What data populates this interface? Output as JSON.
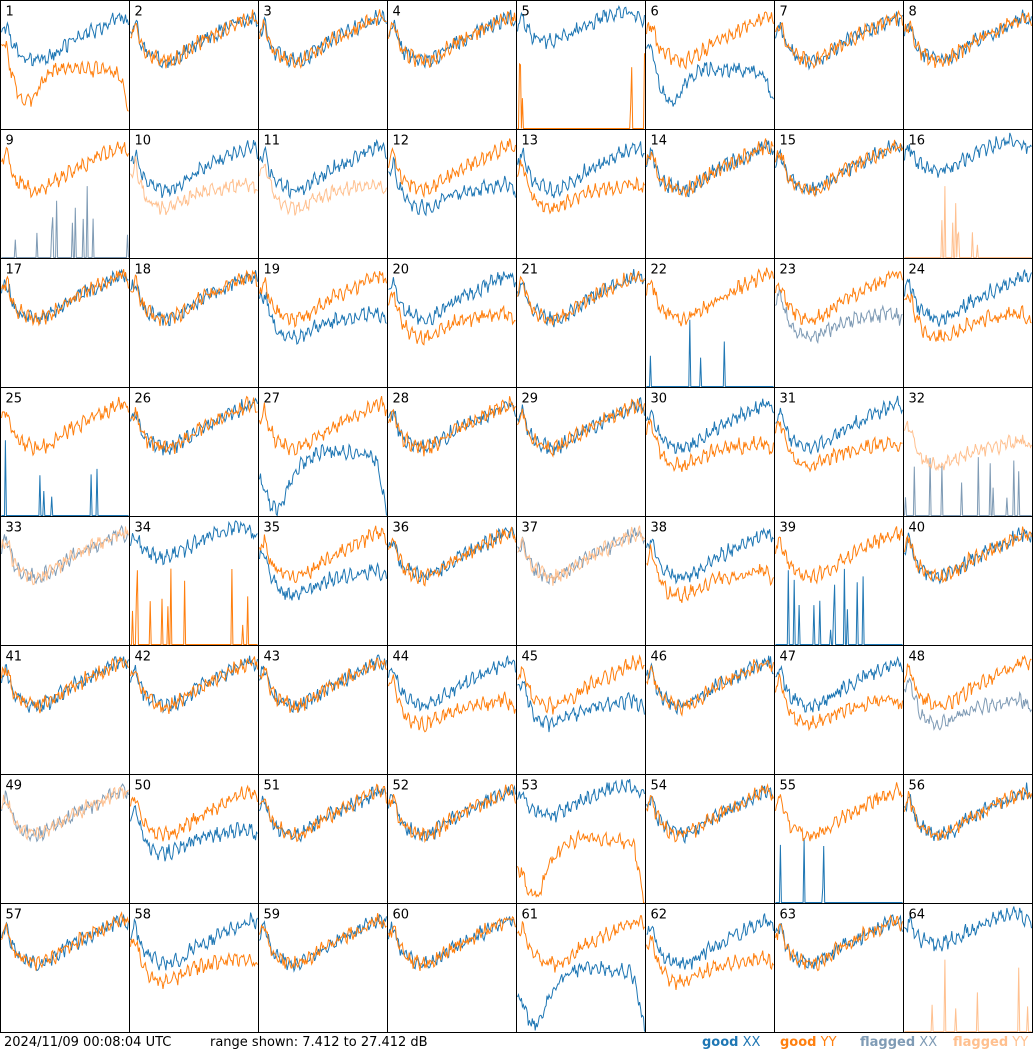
{
  "footer": {
    "timestamp": "2024/11/09 00:08:04 UTC",
    "range_text": "range shown: 7.412 to 27.412 dB"
  },
  "legend": [
    {
      "label": "good",
      "pol": "XX",
      "color": "#1f77b4"
    },
    {
      "label": "good",
      "pol": "YY",
      "color": "#ff7f0e"
    },
    {
      "label": "flagged",
      "pol": "XX",
      "color": "#7f9bb5"
    },
    {
      "label": "flagged",
      "pol": "YY",
      "color": "#ffc08f"
    }
  ],
  "chart_data": {
    "type": "line",
    "title": "",
    "xlabel": "",
    "ylabel": "",
    "ylim": [
      7.412,
      27.412
    ],
    "unit": "dB",
    "grid": false,
    "legend_position": "bottom-right",
    "layout": {
      "rows": 8,
      "cols": 8
    },
    "panel_labels": [
      "1",
      "2",
      "3",
      "4",
      "5",
      "6",
      "7",
      "8",
      "9",
      "10",
      "11",
      "12",
      "13",
      "14",
      "15",
      "16",
      "17",
      "18",
      "19",
      "20",
      "21",
      "22",
      "23",
      "24",
      "25",
      "26",
      "27",
      "28",
      "29",
      "30",
      "31",
      "32",
      "33",
      "34",
      "35",
      "36",
      "37",
      "38",
      "39",
      "40",
      "41",
      "42",
      "43",
      "44",
      "45",
      "46",
      "47",
      "48",
      "49",
      "50",
      "51",
      "52",
      "53",
      "54",
      "55",
      "56",
      "57",
      "58",
      "59",
      "60",
      "61",
      "62",
      "63",
      "64"
    ],
    "series_styles": {
      "good_xx": "#1f77b4",
      "good_yy": "#ff7f0e",
      "flagged_xx": "#7f9bb5",
      "flagged_yy": "#ffc08f"
    },
    "profiles": {
      "normal": [
        22.5,
        24.0,
        21.0,
        19.5,
        19.0,
        18.5,
        18.2,
        18.0,
        18.2,
        18.6,
        19.0,
        19.6,
        20.2,
        20.8,
        21.2,
        21.6,
        22.0,
        22.4,
        22.8,
        23.2,
        23.6,
        24.0,
        24.4,
        24.8,
        25.0,
        24.2
      ],
      "raised": [
        23.5,
        25.0,
        22.8,
        22.0,
        21.6,
        21.4,
        21.2,
        21.2,
        21.4,
        21.8,
        22.2,
        22.6,
        23.0,
        23.4,
        23.8,
        24.2,
        24.6,
        25.0,
        25.2,
        25.4,
        25.6,
        25.8,
        26.0,
        25.6,
        25.0,
        24.6
      ],
      "deep_dip": [
        21.0,
        20.0,
        16.0,
        13.5,
        12.0,
        11.5,
        12.2,
        13.5,
        14.8,
        15.8,
        16.5,
        16.8,
        17.0,
        17.0,
        17.0,
        16.9,
        16.8,
        16.8,
        16.8,
        16.7,
        16.6,
        16.5,
        16.3,
        16.0,
        14.0,
        11.0
      ],
      "arch": [
        13.0,
        12.0,
        9.5,
        8.5,
        8.6,
        10.5,
        12.5,
        14.0,
        15.2,
        16.0,
        16.6,
        17.0,
        17.3,
        17.5,
        17.5,
        17.4,
        17.4,
        17.3,
        17.3,
        17.2,
        17.1,
        17.0,
        16.8,
        16.0,
        12.0,
        7.8
      ],
      "low": [
        21.0,
        22.0,
        19.0,
        17.0,
        16.0,
        15.5,
        15.3,
        15.2,
        15.4,
        15.8,
        16.2,
        16.6,
        17.0,
        17.4,
        17.6,
        17.8,
        18.0,
        18.2,
        18.3,
        18.4,
        18.6,
        18.8,
        19.0,
        19.0,
        18.4,
        17.8
      ],
      "spikes": [
        7.412,
        7.412,
        7.412,
        10.5,
        7.412,
        7.412,
        7.412,
        7.412,
        12.0,
        7.412,
        7.412,
        7.412,
        7.412,
        7.412,
        7.412,
        9.0,
        7.412,
        7.412,
        7.412,
        11.0,
        7.412,
        7.412,
        7.412,
        7.412,
        10.0,
        7.412
      ]
    },
    "panels": [
      {
        "id": "1",
        "xx": "normal",
        "yy": "deep_dip"
      },
      {
        "id": "2",
        "xx": "normal",
        "yy": "normal"
      },
      {
        "id": "3",
        "xx": "normal",
        "yy": "normal"
      },
      {
        "id": "4",
        "xx": "normal",
        "yy": "normal"
      },
      {
        "id": "5",
        "xx": "raised",
        "yy": "spikes"
      },
      {
        "id": "6",
        "xx": "deep_dip",
        "yy": "normal"
      },
      {
        "id": "7",
        "xx": "normal",
        "yy": "normal"
      },
      {
        "id": "8",
        "xx": "normal",
        "yy": "normal"
      },
      {
        "id": "9",
        "xx": "spikes",
        "yy": "normal",
        "flag_xx": true
      },
      {
        "id": "10",
        "xx": "normal",
        "yy": "low",
        "flag_yy": true
      },
      {
        "id": "11",
        "xx": "normal",
        "yy": "low",
        "flag_yy": true
      },
      {
        "id": "12",
        "xx": "low",
        "yy": "normal"
      },
      {
        "id": "13",
        "xx": "normal",
        "yy": "low"
      },
      {
        "id": "14",
        "xx": "normal",
        "yy": "normal"
      },
      {
        "id": "15",
        "xx": "normal",
        "yy": "normal"
      },
      {
        "id": "16",
        "xx": "raised",
        "yy": "spikes",
        "flag_yy": true
      },
      {
        "id": "17",
        "xx": "normal",
        "yy": "normal"
      },
      {
        "id": "18",
        "xx": "normal",
        "yy": "normal"
      },
      {
        "id": "19",
        "xx": "low",
        "yy": "normal"
      },
      {
        "id": "20",
        "xx": "normal",
        "yy": "low"
      },
      {
        "id": "21",
        "xx": "normal",
        "yy": "normal"
      },
      {
        "id": "22",
        "xx": "spikes",
        "yy": "normal"
      },
      {
        "id": "23",
        "xx": "low",
        "yy": "normal",
        "flag_xx": true
      },
      {
        "id": "24",
        "xx": "normal",
        "yy": "low"
      },
      {
        "id": "25",
        "xx": "spikes",
        "yy": "normal"
      },
      {
        "id": "26",
        "xx": "normal",
        "yy": "normal"
      },
      {
        "id": "27",
        "xx": "arch",
        "yy": "normal"
      },
      {
        "id": "28",
        "xx": "normal",
        "yy": "normal"
      },
      {
        "id": "29",
        "xx": "normal",
        "yy": "normal"
      },
      {
        "id": "30",
        "xx": "normal",
        "yy": "low"
      },
      {
        "id": "31",
        "xx": "normal",
        "yy": "low"
      },
      {
        "id": "32",
        "xx": "spikes",
        "yy": "low",
        "flag_xx": true,
        "flag_yy": true
      },
      {
        "id": "33",
        "xx": "normal",
        "yy": "normal",
        "flag_xx": true,
        "flag_yy": true
      },
      {
        "id": "34",
        "xx": "raised",
        "yy": "spikes"
      },
      {
        "id": "35",
        "xx": "low",
        "yy": "normal"
      },
      {
        "id": "36",
        "xx": "normal",
        "yy": "normal"
      },
      {
        "id": "37",
        "xx": "normal",
        "yy": "normal",
        "flag_xx": true,
        "flag_yy": true
      },
      {
        "id": "38",
        "xx": "normal",
        "yy": "low"
      },
      {
        "id": "39",
        "xx": "spikes",
        "yy": "normal"
      },
      {
        "id": "40",
        "xx": "normal",
        "yy": "normal"
      },
      {
        "id": "41",
        "xx": "normal",
        "yy": "normal"
      },
      {
        "id": "42",
        "xx": "normal",
        "yy": "normal"
      },
      {
        "id": "43",
        "xx": "normal",
        "yy": "normal"
      },
      {
        "id": "44",
        "xx": "normal",
        "yy": "low"
      },
      {
        "id": "45",
        "xx": "low",
        "yy": "normal"
      },
      {
        "id": "46",
        "xx": "normal",
        "yy": "normal"
      },
      {
        "id": "47",
        "xx": "normal",
        "yy": "low"
      },
      {
        "id": "48",
        "xx": "low",
        "yy": "normal",
        "flag_xx": true
      },
      {
        "id": "49",
        "xx": "normal",
        "yy": "normal",
        "flag_xx": true,
        "flag_yy": true
      },
      {
        "id": "50",
        "xx": "low",
        "yy": "normal"
      },
      {
        "id": "51",
        "xx": "normal",
        "yy": "normal"
      },
      {
        "id": "52",
        "xx": "normal",
        "yy": "normal"
      },
      {
        "id": "53",
        "xx": "raised",
        "yy": "arch"
      },
      {
        "id": "54",
        "xx": "normal",
        "yy": "normal"
      },
      {
        "id": "55",
        "xx": "spikes",
        "yy": "normal"
      },
      {
        "id": "56",
        "xx": "normal",
        "yy": "normal"
      },
      {
        "id": "57",
        "xx": "normal",
        "yy": "normal"
      },
      {
        "id": "58",
        "xx": "normal",
        "yy": "low"
      },
      {
        "id": "59",
        "xx": "normal",
        "yy": "normal"
      },
      {
        "id": "60",
        "xx": "normal",
        "yy": "normal"
      },
      {
        "id": "61",
        "xx": "arch",
        "yy": "normal"
      },
      {
        "id": "62",
        "xx": "normal",
        "yy": "low"
      },
      {
        "id": "63",
        "xx": "normal",
        "yy": "normal"
      },
      {
        "id": "64",
        "xx": "raised",
        "yy": "spikes",
        "flag_yy": true
      }
    ]
  }
}
